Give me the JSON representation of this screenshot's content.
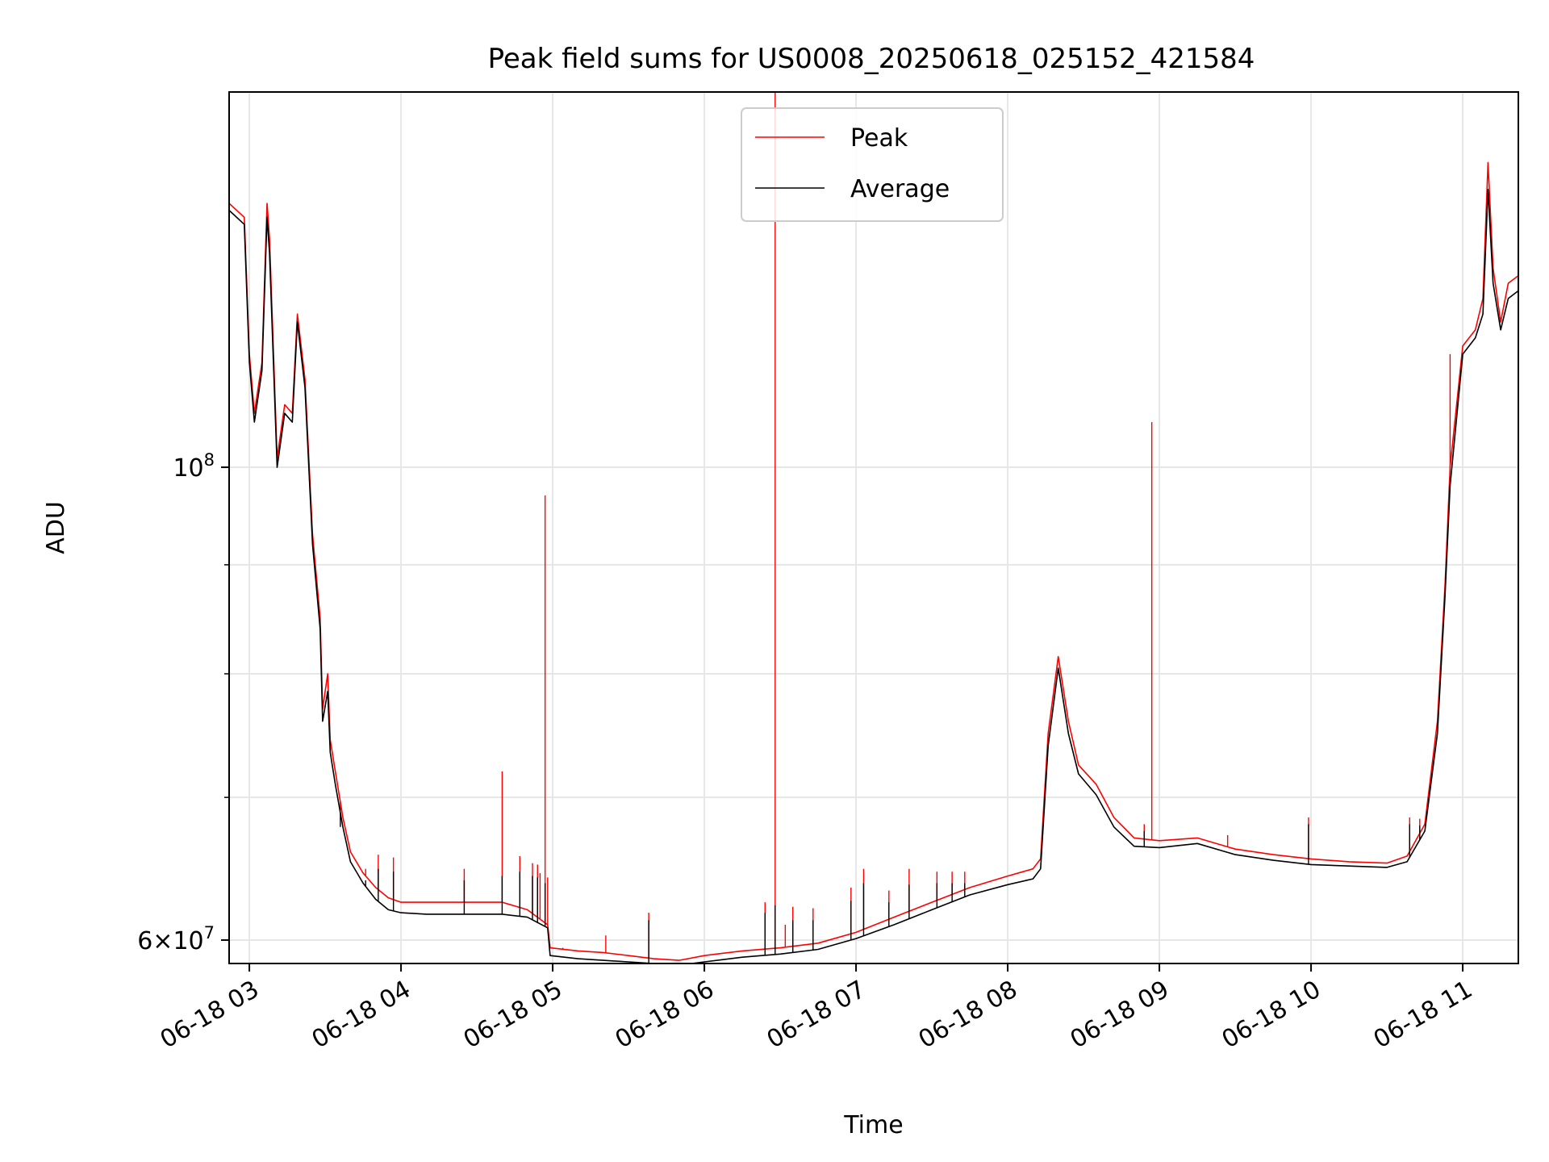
{
  "chart_data": {
    "type": "line",
    "title": "Peak field sums for US0008_20250618_025152_421584",
    "xlabel": "Time",
    "ylabel": "ADU",
    "yscale": "log",
    "xlim": [
      "2025-06-18 02:52",
      "2025-06-18 11:22"
    ],
    "ylim": [
      58500000,
      150000000
    ],
    "grid": true,
    "legend_position": "top-center",
    "x_ticks": [
      {
        "t": "2025-06-18 03:00",
        "label": "06-18 03"
      },
      {
        "t": "2025-06-18 04:00",
        "label": "06-18 04"
      },
      {
        "t": "2025-06-18 05:00",
        "label": "06-18 05"
      },
      {
        "t": "2025-06-18 06:00",
        "label": "06-18 06"
      },
      {
        "t": "2025-06-18 07:00",
        "label": "06-18 07"
      },
      {
        "t": "2025-06-18 08:00",
        "label": "06-18 08"
      },
      {
        "t": "2025-06-18 09:00",
        "label": "06-18 09"
      },
      {
        "t": "2025-06-18 10:00",
        "label": "06-18 10"
      },
      {
        "t": "2025-06-18 11:00",
        "label": "06-18 11"
      }
    ],
    "y_major_ticks": [
      {
        "v": 60000000,
        "base": "6",
        "exp": "7"
      },
      {
        "v": 100000000,
        "base": "",
        "exp": "8"
      }
    ],
    "y_minor_ticks": [
      70000000,
      80000000,
      90000000
    ],
    "series": [
      {
        "name": "Peak",
        "color": "#ff0000",
        "points": [
          [
            "2025-06-18 02:52",
            133000000
          ],
          [
            "2025-06-18 02:58",
            131000000
          ],
          [
            "2025-06-18 03:00",
            113000000
          ],
          [
            "2025-06-18 03:02",
            106000000
          ],
          [
            "2025-06-18 03:05",
            112000000
          ],
          [
            "2025-06-18 03:07",
            133000000
          ],
          [
            "2025-06-18 03:08",
            128000000
          ],
          [
            "2025-06-18 03:11",
            101000000
          ],
          [
            "2025-06-18 03:14",
            107000000
          ],
          [
            "2025-06-18 03:17",
            106000000
          ],
          [
            "2025-06-18 03:19",
            118000000
          ],
          [
            "2025-06-18 03:22",
            110000000
          ],
          [
            "2025-06-18 03:25",
            93000000
          ],
          [
            "2025-06-18 03:28",
            85000000
          ],
          [
            "2025-06-18 03:29",
            77000000
          ],
          [
            "2025-06-18 03:31",
            80000000
          ],
          [
            "2025-06-18 03:32",
            74500000
          ],
          [
            "2025-06-18 03:34",
            72000000
          ],
          [
            "2025-06-18 03:37",
            68500000
          ],
          [
            "2025-06-18 03:40",
            66000000
          ],
          [
            "2025-06-18 03:45",
            64500000
          ],
          [
            "2025-06-18 03:50",
            63500000
          ],
          [
            "2025-06-18 03:55",
            62800000
          ],
          [
            "2025-06-18 04:00",
            62500000
          ],
          [
            "2025-06-18 04:10",
            62500000
          ],
          [
            "2025-06-18 04:20",
            62500000
          ],
          [
            "2025-06-18 04:30",
            62500000
          ],
          [
            "2025-06-18 04:40",
            62500000
          ],
          [
            "2025-06-18 04:50",
            62000000
          ],
          [
            "2025-06-18 04:58",
            61000000
          ],
          [
            "2025-06-18 04:59",
            59500000
          ],
          [
            "2025-06-18 05:10",
            59300000
          ],
          [
            "2025-06-18 05:20",
            59200000
          ],
          [
            "2025-06-18 05:30",
            59000000
          ],
          [
            "2025-06-18 05:40",
            58800000
          ],
          [
            "2025-06-18 05:50",
            58700000
          ],
          [
            "2025-06-18 06:00",
            59000000
          ],
          [
            "2025-06-18 06:15",
            59300000
          ],
          [
            "2025-06-18 06:30",
            59500000
          ],
          [
            "2025-06-18 06:45",
            59800000
          ],
          [
            "2025-06-18 07:00",
            60500000
          ],
          [
            "2025-06-18 07:15",
            61500000
          ],
          [
            "2025-06-18 07:30",
            62500000
          ],
          [
            "2025-06-18 07:45",
            63500000
          ],
          [
            "2025-06-18 08:00",
            64300000
          ],
          [
            "2025-06-18 08:10",
            64800000
          ],
          [
            "2025-06-18 08:13",
            65500000
          ],
          [
            "2025-06-18 08:16",
            75000000
          ],
          [
            "2025-06-18 08:20",
            81500000
          ],
          [
            "2025-06-18 08:24",
            76000000
          ],
          [
            "2025-06-18 08:28",
            72500000
          ],
          [
            "2025-06-18 08:35",
            71000000
          ],
          [
            "2025-06-18 08:42",
            68500000
          ],
          [
            "2025-06-18 08:50",
            67000000
          ],
          [
            "2025-06-18 09:00",
            66800000
          ],
          [
            "2025-06-18 09:15",
            67000000
          ],
          [
            "2025-06-18 09:30",
            66200000
          ],
          [
            "2025-06-18 09:45",
            65800000
          ],
          [
            "2025-06-18 10:00",
            65500000
          ],
          [
            "2025-06-18 10:15",
            65300000
          ],
          [
            "2025-06-18 10:30",
            65200000
          ],
          [
            "2025-06-18 10:38",
            65700000
          ],
          [
            "2025-06-18 10:45",
            68000000
          ],
          [
            "2025-06-18 10:50",
            76000000
          ],
          [
            "2025-06-18 10:53",
            88000000
          ],
          [
            "2025-06-18 10:55",
            100000000
          ],
          [
            "2025-06-18 11:00",
            114000000
          ],
          [
            "2025-06-18 11:05",
            116000000
          ],
          [
            "2025-06-18 11:08",
            120000000
          ],
          [
            "2025-06-18 11:10",
            139000000
          ],
          [
            "2025-06-18 11:12",
            124000000
          ],
          [
            "2025-06-18 11:15",
            117000000
          ],
          [
            "2025-06-18 11:18",
            122000000
          ],
          [
            "2025-06-18 11:22",
            123000000
          ]
        ],
        "spikes": [
          [
            "2025-06-18 03:36",
            69000000
          ],
          [
            "2025-06-18 03:46",
            64800000
          ],
          [
            "2025-06-18 03:51",
            65800000
          ],
          [
            "2025-06-18 03:57",
            65600000
          ],
          [
            "2025-06-18 04:25",
            64800000
          ],
          [
            "2025-06-18 04:40",
            72000000
          ],
          [
            "2025-06-18 04:47",
            65700000
          ],
          [
            "2025-06-18 04:52",
            65200000
          ],
          [
            "2025-06-18 04:54",
            65100000
          ],
          [
            "2025-06-18 04:55",
            64500000
          ],
          [
            "2025-06-18 04:57",
            97000000
          ],
          [
            "2025-06-18 04:58",
            64200000
          ],
          [
            "2025-06-18 05:04",
            59500000
          ],
          [
            "2025-06-18 05:21",
            60300000
          ],
          [
            "2025-06-18 05:38",
            61800000
          ],
          [
            "2025-06-18 06:24",
            62500000
          ],
          [
            "2025-06-18 06:28",
            150000000
          ],
          [
            "2025-06-18 06:32",
            61000000
          ],
          [
            "2025-06-18 06:35",
            62200000
          ],
          [
            "2025-06-18 06:43",
            62100000
          ],
          [
            "2025-06-18 06:58",
            63500000
          ],
          [
            "2025-06-18 07:03",
            64800000
          ],
          [
            "2025-06-18 07:13",
            63300000
          ],
          [
            "2025-06-18 07:21",
            64800000
          ],
          [
            "2025-06-18 07:32",
            64600000
          ],
          [
            "2025-06-18 07:38",
            64600000
          ],
          [
            "2025-06-18 07:43",
            64600000
          ],
          [
            "2025-06-18 08:54",
            68000000
          ],
          [
            "2025-06-18 08:57",
            105000000
          ],
          [
            "2025-06-18 09:27",
            67200000
          ],
          [
            "2025-06-18 09:59",
            68500000
          ],
          [
            "2025-06-18 10:39",
            68500000
          ],
          [
            "2025-06-18 10:43",
            68400000
          ],
          [
            "2025-06-18 10:55",
            113000000
          ]
        ]
      },
      {
        "name": "Average",
        "color": "#000000",
        "points": [
          [
            "2025-06-18 02:52",
            132000000
          ],
          [
            "2025-06-18 02:58",
            130000000
          ],
          [
            "2025-06-18 03:00",
            112000000
          ],
          [
            "2025-06-18 03:02",
            105000000
          ],
          [
            "2025-06-18 03:05",
            111000000
          ],
          [
            "2025-06-18 03:07",
            131000000
          ],
          [
            "2025-06-18 03:08",
            126000000
          ],
          [
            "2025-06-18 03:11",
            100000000
          ],
          [
            "2025-06-18 03:14",
            106000000
          ],
          [
            "2025-06-18 03:17",
            105000000
          ],
          [
            "2025-06-18 03:19",
            117000000
          ],
          [
            "2025-06-18 03:22",
            109000000
          ],
          [
            "2025-06-18 03:25",
            92000000
          ],
          [
            "2025-06-18 03:28",
            84000000
          ],
          [
            "2025-06-18 03:29",
            76000000
          ],
          [
            "2025-06-18 03:31",
            78500000
          ],
          [
            "2025-06-18 03:32",
            73500000
          ],
          [
            "2025-06-18 03:34",
            71000000
          ],
          [
            "2025-06-18 03:37",
            67800000
          ],
          [
            "2025-06-18 03:40",
            65300000
          ],
          [
            "2025-06-18 03:45",
            63800000
          ],
          [
            "2025-06-18 03:50",
            62700000
          ],
          [
            "2025-06-18 03:55",
            62000000
          ],
          [
            "2025-06-18 04:00",
            61800000
          ],
          [
            "2025-06-18 04:10",
            61700000
          ],
          [
            "2025-06-18 04:20",
            61700000
          ],
          [
            "2025-06-18 04:30",
            61700000
          ],
          [
            "2025-06-18 04:40",
            61700000
          ],
          [
            "2025-06-18 04:50",
            61500000
          ],
          [
            "2025-06-18 04:58",
            60800000
          ],
          [
            "2025-06-18 04:59",
            59000000
          ],
          [
            "2025-06-18 05:10",
            58800000
          ],
          [
            "2025-06-18 05:20",
            58700000
          ],
          [
            "2025-06-18 05:30",
            58600000
          ],
          [
            "2025-06-18 05:40",
            58500000
          ],
          [
            "2025-06-18 05:50",
            58400000
          ],
          [
            "2025-06-18 06:00",
            58600000
          ],
          [
            "2025-06-18 06:15",
            58900000
          ],
          [
            "2025-06-18 06:30",
            59100000
          ],
          [
            "2025-06-18 06:45",
            59400000
          ],
          [
            "2025-06-18 07:00",
            60100000
          ],
          [
            "2025-06-18 07:15",
            61000000
          ],
          [
            "2025-06-18 07:30",
            62000000
          ],
          [
            "2025-06-18 07:45",
            63000000
          ],
          [
            "2025-06-18 08:00",
            63700000
          ],
          [
            "2025-06-18 08:10",
            64100000
          ],
          [
            "2025-06-18 08:13",
            64800000
          ],
          [
            "2025-06-18 08:16",
            74000000
          ],
          [
            "2025-06-18 08:20",
            80500000
          ],
          [
            "2025-06-18 08:24",
            75000000
          ],
          [
            "2025-06-18 08:28",
            71800000
          ],
          [
            "2025-06-18 08:35",
            70200000
          ],
          [
            "2025-06-18 08:42",
            67800000
          ],
          [
            "2025-06-18 08:50",
            66400000
          ],
          [
            "2025-06-18 09:00",
            66300000
          ],
          [
            "2025-06-18 09:15",
            66600000
          ],
          [
            "2025-06-18 09:30",
            65800000
          ],
          [
            "2025-06-18 09:45",
            65400000
          ],
          [
            "2025-06-18 10:00",
            65100000
          ],
          [
            "2025-06-18 10:15",
            65000000
          ],
          [
            "2025-06-18 10:30",
            64900000
          ],
          [
            "2025-06-18 10:38",
            65300000
          ],
          [
            "2025-06-18 10:45",
            67500000
          ],
          [
            "2025-06-18 10:50",
            75000000
          ],
          [
            "2025-06-18 10:53",
            87000000
          ],
          [
            "2025-06-18 10:55",
            98000000
          ],
          [
            "2025-06-18 11:00",
            113000000
          ],
          [
            "2025-06-18 11:05",
            115000000
          ],
          [
            "2025-06-18 11:08",
            118000000
          ],
          [
            "2025-06-18 11:10",
            135000000
          ],
          [
            "2025-06-18 11:12",
            122000000
          ],
          [
            "2025-06-18 11:15",
            116000000
          ],
          [
            "2025-06-18 11:18",
            120000000
          ],
          [
            "2025-06-18 11:22",
            121000000
          ]
        ],
        "spikes": [
          [
            "2025-06-18 03:36",
            67800000
          ],
          [
            "2025-06-18 03:46",
            64000000
          ],
          [
            "2025-06-18 03:51",
            64800000
          ],
          [
            "2025-06-18 03:57",
            64600000
          ],
          [
            "2025-06-18 04:25",
            64000000
          ],
          [
            "2025-06-18 04:40",
            64300000
          ],
          [
            "2025-06-18 04:47",
            64600000
          ],
          [
            "2025-06-18 04:52",
            64300000
          ],
          [
            "2025-06-18 04:54",
            64200000
          ],
          [
            "2025-06-18 04:57",
            63800000
          ],
          [
            "2025-06-18 05:38",
            61300000
          ],
          [
            "2025-06-18 06:24",
            61800000
          ],
          [
            "2025-06-18 06:28",
            62300000
          ],
          [
            "2025-06-18 06:35",
            61300000
          ],
          [
            "2025-06-18 06:43",
            61300000
          ],
          [
            "2025-06-18 06:58",
            62600000
          ],
          [
            "2025-06-18 07:03",
            63800000
          ],
          [
            "2025-06-18 07:13",
            62500000
          ],
          [
            "2025-06-18 07:21",
            63700000
          ],
          [
            "2025-06-18 07:32",
            63800000
          ],
          [
            "2025-06-18 07:38",
            63800000
          ],
          [
            "2025-06-18 07:43",
            63800000
          ],
          [
            "2025-06-18 08:54",
            67500000
          ],
          [
            "2025-06-18 09:59",
            68000000
          ],
          [
            "2025-06-18 10:39",
            68000000
          ],
          [
            "2025-06-18 10:43",
            67900000
          ]
        ]
      }
    ]
  }
}
